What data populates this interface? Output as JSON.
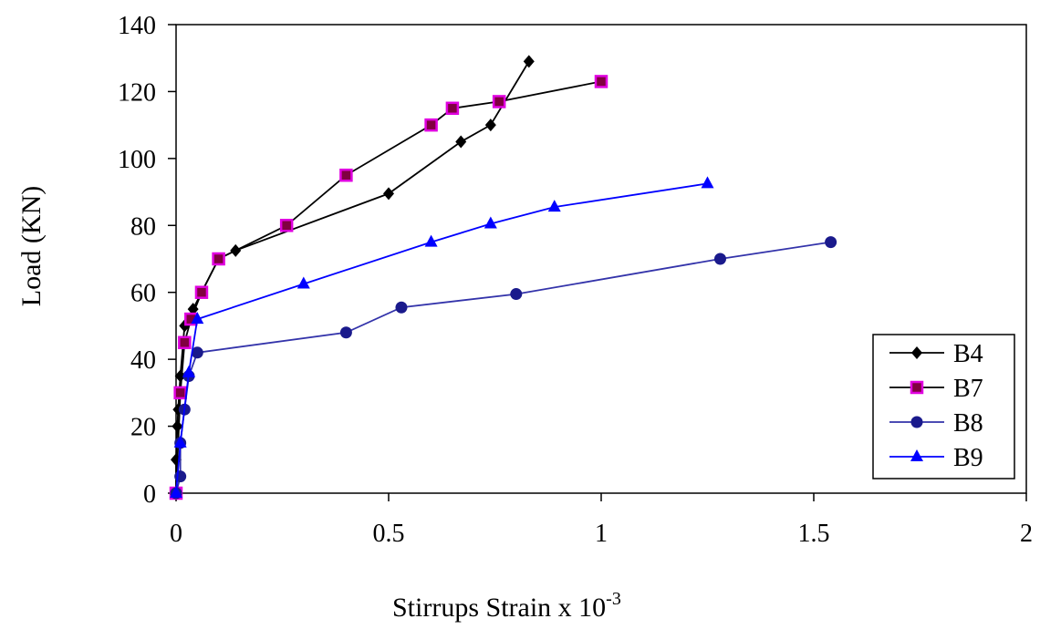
{
  "chart_data": {
    "type": "line",
    "title": "",
    "xlabel": "Stirrups Strain x 10",
    "xlabel_superscript": "-3",
    "ylabel": "Load (KN)",
    "xlim": [
      0,
      2
    ],
    "ylim": [
      0,
      140
    ],
    "xticks": [
      0,
      0.5,
      1,
      1.5,
      2
    ],
    "xtick_labels": [
      "0",
      "0.5",
      "1",
      "1.5",
      "2"
    ],
    "yticks": [
      0,
      20,
      40,
      60,
      80,
      100,
      120,
      140
    ],
    "ytick_labels": [
      "0",
      "20",
      "40",
      "60",
      "80",
      "100",
      "120",
      "140"
    ],
    "grid": false,
    "legend_position": "bottom-right",
    "series": [
      {
        "name": "B4",
        "color": "#000000",
        "marker": "diamond",
        "points": [
          [
            0,
            0
          ],
          [
            0,
            10
          ],
          [
            0.003,
            20
          ],
          [
            0.005,
            25
          ],
          [
            0.01,
            35
          ],
          [
            0.02,
            50
          ],
          [
            0.04,
            55
          ],
          [
            0.06,
            60
          ],
          [
            0.1,
            70
          ],
          [
            0.14,
            72.5
          ],
          [
            0.5,
            89.5
          ],
          [
            0.67,
            105
          ],
          [
            0.74,
            110
          ],
          [
            0.83,
            129
          ]
        ]
      },
      {
        "name": "B7",
        "color": "#000000",
        "marker": "square",
        "marker_fill": "#800040",
        "marker_edge": "#e000e0",
        "points": [
          [
            0,
            0
          ],
          [
            0.01,
            30
          ],
          [
            0.02,
            45
          ],
          [
            0.035,
            52
          ],
          [
            0.06,
            60
          ],
          [
            0.1,
            70
          ],
          [
            0.26,
            80
          ],
          [
            0.4,
            95
          ],
          [
            0.6,
            110
          ],
          [
            0.65,
            115
          ],
          [
            0.76,
            117
          ],
          [
            1.0,
            123
          ]
        ]
      },
      {
        "name": "B8",
        "color": "#3333aa",
        "marker": "circle",
        "marker_fill": "#1a1a8c",
        "points": [
          [
            0,
            0
          ],
          [
            0.01,
            5
          ],
          [
            0.01,
            15
          ],
          [
            0.02,
            25
          ],
          [
            0.03,
            35
          ],
          [
            0.05,
            42
          ],
          [
            0.4,
            48
          ],
          [
            0.53,
            55.5
          ],
          [
            0.8,
            59.5
          ],
          [
            1.28,
            70
          ],
          [
            1.54,
            75
          ]
        ]
      },
      {
        "name": "B9",
        "color": "#0000ff",
        "marker": "triangle",
        "marker_fill": "#0000ff",
        "points": [
          [
            0,
            0
          ],
          [
            0.01,
            15
          ],
          [
            0.03,
            36
          ],
          [
            0.05,
            52
          ],
          [
            0.3,
            62.5
          ],
          [
            0.6,
            75
          ],
          [
            0.74,
            80.5
          ],
          [
            0.89,
            85.5
          ],
          [
            1.25,
            92.5
          ]
        ]
      }
    ]
  }
}
